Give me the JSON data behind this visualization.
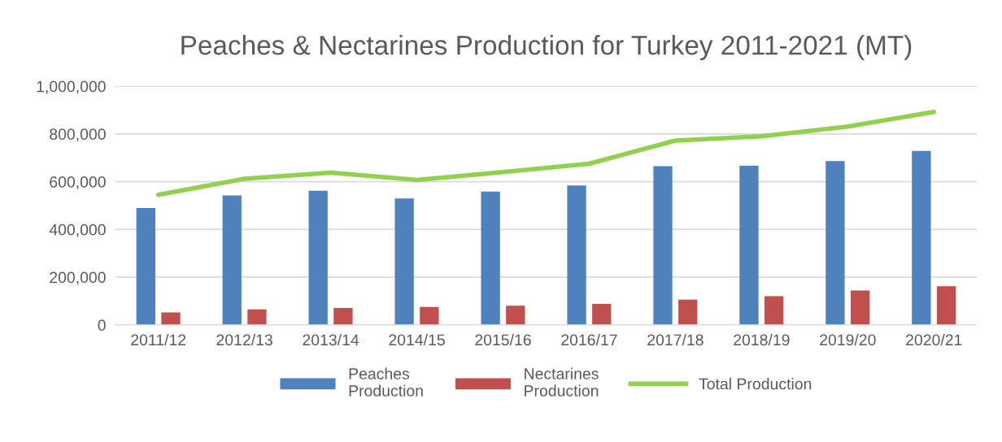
{
  "chart_data": {
    "type": "bar",
    "title": "Peaches & Nectarines Production for Turkey 2011-2021 (MT)",
    "categories": [
      "2011/12",
      "2012/13",
      "2013/14",
      "2014/15",
      "2015/16",
      "2016/17",
      "2017/18",
      "2018/19",
      "2019/20",
      "2020/21"
    ],
    "series": [
      {
        "name": "Peaches\nProduction",
        "color": "#4f81bd",
        "values": [
          490000,
          542000,
          562000,
          530000,
          559000,
          584000,
          665000,
          667000,
          686000,
          729000
        ]
      },
      {
        "name": "Nectarines\nProduction",
        "color": "#c0504d",
        "values": [
          52000,
          65000,
          71000,
          75000,
          80000,
          88000,
          106000,
          120000,
          144000,
          162000
        ]
      },
      {
        "name": "Total Production",
        "type": "line",
        "color": "#92d050",
        "values": [
          545000,
          612000,
          638000,
          607000,
          640000,
          675000,
          772000,
          790000,
          831000,
          892000
        ]
      }
    ],
    "ylim": [
      0,
      1000000
    ],
    "yticks": [
      {
        "value": 0,
        "label": "0"
      },
      {
        "value": 200000,
        "label": "200,000"
      },
      {
        "value": 400000,
        "label": "400,000"
      },
      {
        "value": 600000,
        "label": "600,000"
      },
      {
        "value": 800000,
        "label": "800,000"
      },
      {
        "value": 1000000,
        "label": "1,000,000"
      }
    ],
    "grid": "y",
    "legend": "bottom"
  }
}
